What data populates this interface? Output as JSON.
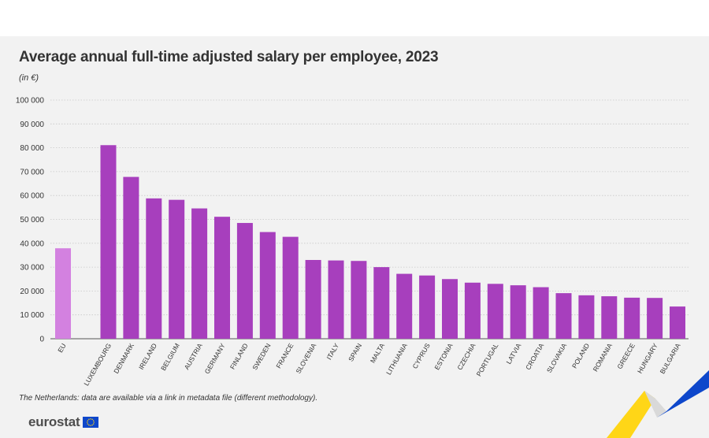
{
  "chart_data": {
    "type": "bar",
    "title": "Average annual full-time adjusted salary per employee, 2023",
    "unit_label": "(in €)",
    "xlabel": "",
    "ylabel": "",
    "ylim": [
      0,
      100000
    ],
    "yticks": [
      0,
      10000,
      20000,
      30000,
      40000,
      50000,
      60000,
      70000,
      80000,
      90000,
      100000
    ],
    "ytick_labels": [
      "0",
      "10 000",
      "20 000",
      "30 000",
      "40 000",
      "50 000",
      "60 000",
      "70 000",
      "80 000",
      "90 000",
      "100 000"
    ],
    "grid": true,
    "categories": [
      "EU",
      "LUXEMBOURG",
      "DENMARK",
      "IRELAND",
      "BELGIUM",
      "AUSTRIA",
      "GERMANY",
      "FINLAND",
      "SWEDEN",
      "FRANCE",
      "SLOVENIA",
      "ITALY",
      "SPAIN",
      "MALTA",
      "LITHUANIA",
      "CYPRUS",
      "ESTONIA",
      "CZECHIA",
      "PORTUGAL",
      "LATVIA",
      "CROATIA",
      "SLOVAKIA",
      "POLAND",
      "ROMANIA",
      "GREECE",
      "HUNGARY",
      "BULGARIA"
    ],
    "values": [
      37900,
      81100,
      67800,
      58800,
      58200,
      54600,
      51100,
      48500,
      44700,
      42700,
      33000,
      32800,
      32600,
      30000,
      27200,
      26500,
      25000,
      23500,
      23000,
      22400,
      21600,
      19100,
      18200,
      17800,
      17200,
      17100,
      13500
    ],
    "highlight_category": "EU",
    "colors": {
      "highlight": "#d381e0",
      "bar": "#a73fbd",
      "grid": "#c8c8c8",
      "axis": "#555555"
    }
  },
  "footnote": "The Netherlands: data are available via a link in metadata file (different methodology).",
  "brand": {
    "name": "eurostat",
    "flag_color": "#0e47cb",
    "flag_star_color": "#ffd617",
    "swoosh_colors": [
      "#ffd617",
      "#0e47cb",
      "#ffffff"
    ]
  }
}
